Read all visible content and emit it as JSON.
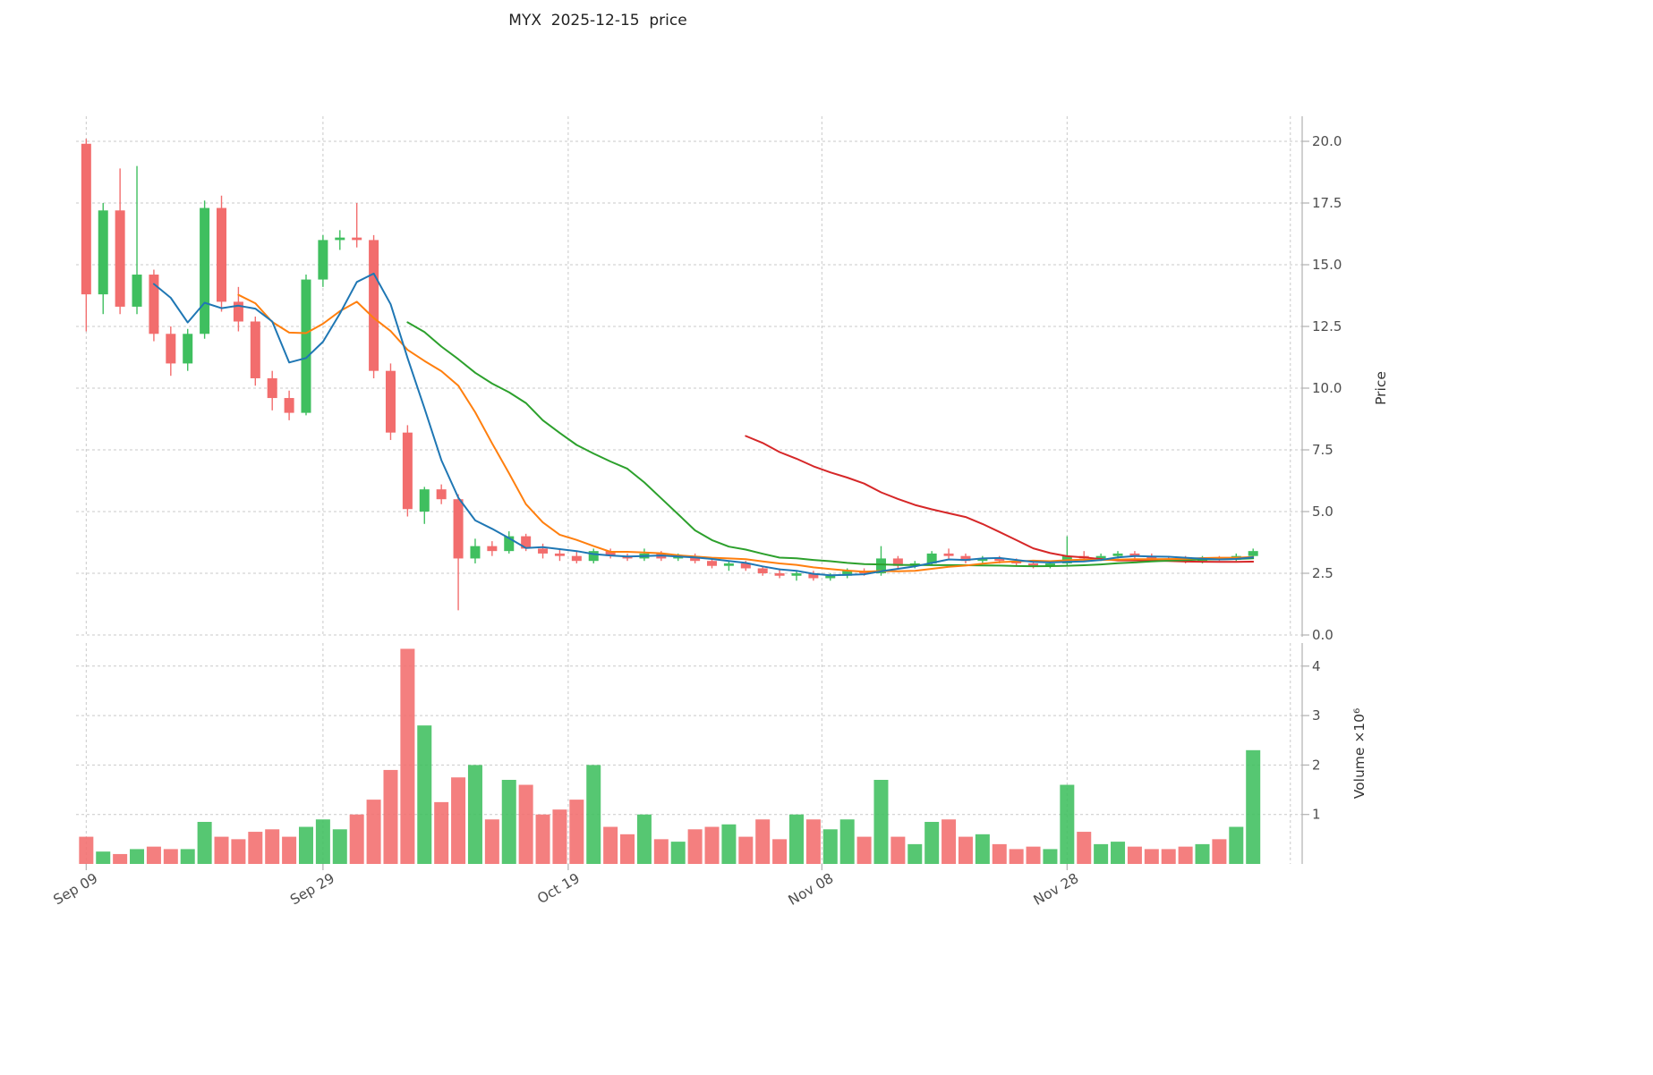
{
  "title": "MYX  2025-12-15  price",
  "chart_data": {
    "type": "candlestick",
    "title": "MYX  2025-12-15  price",
    "legend_position": "none",
    "grid": true,
    "price_axis": {
      "label": "Price",
      "range": [
        0,
        21
      ],
      "ticks": [
        {
          "v": 0,
          "label": "0.0"
        },
        {
          "v": 2.5,
          "label": "2.5"
        },
        {
          "v": 5,
          "label": "5.0"
        },
        {
          "v": 7.5,
          "label": "7.5"
        },
        {
          "v": 10,
          "label": "10.0"
        },
        {
          "v": 12.5,
          "label": "12.5"
        },
        {
          "v": 15,
          "label": "15.0"
        },
        {
          "v": 17.5,
          "label": "17.5"
        },
        {
          "v": 20,
          "label": "20.0"
        }
      ]
    },
    "volume_axis": {
      "label": "Volume ×10⁶",
      "unit": "millions",
      "range": [
        0,
        4.5
      ],
      "ticks": [
        {
          "v": 1,
          "label": "1"
        },
        {
          "v": 2,
          "label": "2"
        },
        {
          "v": 3,
          "label": "3"
        },
        {
          "v": 4,
          "label": "4"
        }
      ]
    },
    "x_axis": {
      "ticks": [
        {
          "i": 0,
          "label": "Sep 09"
        },
        {
          "i": 14,
          "label": "Sep 29"
        },
        {
          "i": 28.5,
          "label": "Oct 19"
        },
        {
          "i": 43.5,
          "label": "Nov 08"
        },
        {
          "i": 58,
          "label": "Nov 28"
        },
        {
          "i": 71.2,
          "label": ""
        }
      ]
    },
    "colors": {
      "up": "#3fbf5f",
      "down": "#f26d6d",
      "ma5": "#1f77b4",
      "ma10": "#ff7f0e",
      "ma20": "#2ca02c",
      "ma40": "#d62728",
      "grid": "#c9c9c9",
      "axis": "#b0b0b0"
    },
    "moving_averages": [
      {
        "name": "MA5",
        "window": 5,
        "color": "#1f77b4"
      },
      {
        "name": "MA10",
        "window": 10,
        "color": "#ff7f0e"
      },
      {
        "name": "MA20",
        "window": 20,
        "color": "#2ca02c"
      },
      {
        "name": "MA40",
        "window": 40,
        "color": "#d62728"
      }
    ],
    "ohlcv_columns": [
      "open",
      "high",
      "low",
      "close",
      "volume_millions"
    ],
    "ohlcv": [
      [
        19.9,
        20.1,
        12.3,
        13.8,
        0.55
      ],
      [
        13.8,
        17.5,
        13.0,
        17.2,
        0.25
      ],
      [
        17.2,
        18.9,
        13.0,
        13.3,
        0.2
      ],
      [
        13.3,
        19.0,
        13.0,
        14.6,
        0.3
      ],
      [
        14.6,
        14.8,
        11.9,
        12.2,
        0.35
      ],
      [
        12.2,
        12.5,
        10.5,
        11.0,
        0.3
      ],
      [
        11.0,
        12.4,
        10.7,
        12.2,
        0.3
      ],
      [
        12.2,
        17.6,
        12.0,
        17.3,
        0.85
      ],
      [
        17.3,
        17.8,
        13.1,
        13.5,
        0.55
      ],
      [
        13.5,
        14.1,
        12.3,
        12.7,
        0.5
      ],
      [
        12.7,
        12.9,
        10.1,
        10.4,
        0.65
      ],
      [
        10.4,
        10.7,
        9.1,
        9.6,
        0.7
      ],
      [
        9.6,
        9.9,
        8.7,
        9.0,
        0.55
      ],
      [
        9.0,
        14.6,
        8.9,
        14.4,
        0.75
      ],
      [
        14.4,
        16.2,
        14.1,
        16.0,
        0.9
      ],
      [
        16.0,
        16.4,
        15.6,
        16.1,
        0.7
      ],
      [
        16.1,
        17.5,
        15.7,
        16.0,
        1.0
      ],
      [
        16.0,
        16.2,
        10.4,
        10.7,
        1.3
      ],
      [
        10.7,
        11.0,
        7.9,
        8.2,
        1.9
      ],
      [
        8.2,
        8.5,
        4.8,
        5.1,
        4.35
      ],
      [
        5.0,
        6.0,
        4.5,
        5.9,
        2.8
      ],
      [
        5.9,
        6.1,
        5.3,
        5.5,
        1.25
      ],
      [
        5.5,
        5.7,
        1.0,
        3.1,
        1.75
      ],
      [
        3.1,
        3.9,
        2.9,
        3.6,
        2.0
      ],
      [
        3.6,
        3.8,
        3.2,
        3.4,
        0.9
      ],
      [
        3.4,
        4.2,
        3.3,
        4.0,
        1.7
      ],
      [
        4.0,
        4.1,
        3.4,
        3.5,
        1.6
      ],
      [
        3.5,
        3.7,
        3.1,
        3.3,
        1.0
      ],
      [
        3.3,
        3.5,
        3.0,
        3.2,
        1.1
      ],
      [
        3.2,
        3.4,
        2.9,
        3.0,
        1.3
      ],
      [
        3.0,
        3.5,
        2.9,
        3.4,
        2.0
      ],
      [
        3.4,
        3.5,
        3.1,
        3.2,
        0.75
      ],
      [
        3.2,
        3.3,
        3.0,
        3.1,
        0.6
      ],
      [
        3.1,
        3.5,
        3.0,
        3.3,
        1.0
      ],
      [
        3.3,
        3.4,
        3.0,
        3.1,
        0.5
      ],
      [
        3.1,
        3.3,
        3.0,
        3.2,
        0.45
      ],
      [
        3.2,
        3.3,
        2.9,
        3.0,
        0.7
      ],
      [
        3.0,
        3.1,
        2.7,
        2.8,
        0.75
      ],
      [
        2.8,
        3.0,
        2.6,
        2.9,
        0.8
      ],
      [
        2.9,
        3.0,
        2.6,
        2.7,
        0.55
      ],
      [
        2.7,
        2.8,
        2.4,
        2.5,
        0.9
      ],
      [
        2.5,
        2.7,
        2.3,
        2.4,
        0.5
      ],
      [
        2.4,
        2.6,
        2.2,
        2.5,
        1.0
      ],
      [
        2.5,
        2.6,
        2.2,
        2.3,
        0.9
      ],
      [
        2.3,
        2.5,
        2.2,
        2.4,
        0.7
      ],
      [
        2.4,
        2.7,
        2.3,
        2.6,
        0.9
      ],
      [
        2.6,
        2.7,
        2.4,
        2.5,
        0.55
      ],
      [
        2.5,
        3.6,
        2.4,
        3.1,
        1.7
      ],
      [
        3.1,
        3.2,
        2.7,
        2.8,
        0.55
      ],
      [
        2.8,
        3.0,
        2.7,
        2.9,
        0.4
      ],
      [
        2.9,
        3.4,
        2.8,
        3.3,
        0.85
      ],
      [
        3.3,
        3.5,
        3.1,
        3.2,
        0.9
      ],
      [
        3.2,
        3.3,
        2.9,
        3.0,
        0.55
      ],
      [
        3.0,
        3.2,
        2.9,
        3.1,
        0.6
      ],
      [
        3.1,
        3.2,
        2.9,
        3.0,
        0.4
      ],
      [
        3.0,
        3.1,
        2.8,
        2.9,
        0.3
      ],
      [
        2.9,
        3.0,
        2.7,
        2.8,
        0.35
      ],
      [
        2.8,
        3.0,
        2.7,
        2.9,
        0.3
      ],
      [
        2.9,
        4.0,
        2.8,
        3.2,
        1.6
      ],
      [
        3.2,
        3.4,
        3.0,
        3.1,
        0.65
      ],
      [
        3.1,
        3.3,
        3.0,
        3.2,
        0.4
      ],
      [
        3.2,
        3.4,
        3.1,
        3.3,
        0.45
      ],
      [
        3.3,
        3.4,
        3.1,
        3.2,
        0.35
      ],
      [
        3.2,
        3.3,
        3.0,
        3.1,
        0.3
      ],
      [
        3.1,
        3.2,
        3.0,
        3.05,
        0.3
      ],
      [
        3.05,
        3.2,
        2.9,
        3.0,
        0.35
      ],
      [
        3.0,
        3.2,
        2.9,
        3.1,
        0.4
      ],
      [
        3.1,
        3.2,
        3.0,
        3.05,
        0.5
      ],
      [
        3.05,
        3.3,
        3.0,
        3.2,
        0.75
      ],
      [
        3.2,
        3.5,
        3.1,
        3.4,
        2.3
      ]
    ]
  }
}
